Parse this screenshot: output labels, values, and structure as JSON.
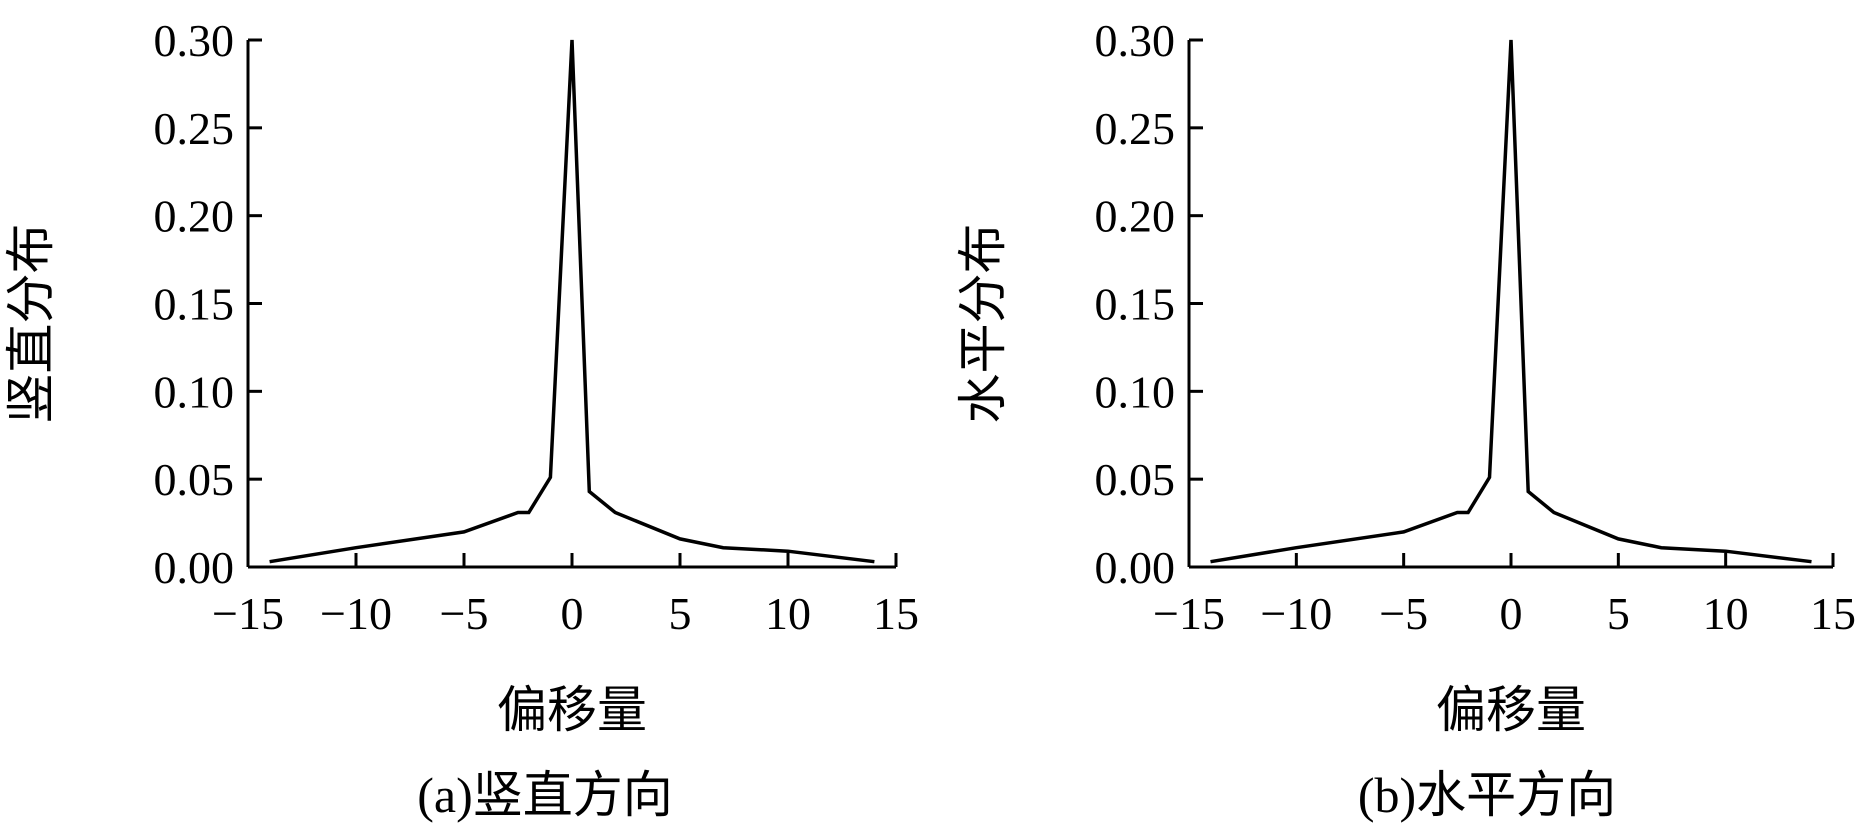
{
  "chart_data": [
    {
      "type": "line",
      "caption": "(a)竖直方向",
      "xlabel": "偏移量",
      "ylabel": "竖直分布",
      "xlim": [
        -15,
        15
      ],
      "ylim": [
        0,
        0.3
      ],
      "xticks": [
        "−15",
        "−10",
        "−5",
        "0",
        "5",
        "10",
        "15"
      ],
      "yticks": [
        "0.00",
        "0.05",
        "0.10",
        "0.15",
        "0.20",
        "0.25",
        "0.30"
      ],
      "grid": false,
      "series": [
        {
          "x": [
            -14,
            -10,
            -5,
            -2.5,
            -2,
            -1,
            0,
            0.8,
            2,
            5,
            7,
            10,
            14
          ],
          "y": [
            0.003,
            0.011,
            0.02,
            0.031,
            0.031,
            0.051,
            0.3,
            0.043,
            0.031,
            0.016,
            0.011,
            0.009,
            0.003
          ]
        }
      ]
    },
    {
      "type": "line",
      "caption": "(b)水平方向",
      "xlabel": "偏移量",
      "ylabel": "水平分布",
      "xlim": [
        -15,
        15
      ],
      "ylim": [
        0,
        0.3
      ],
      "xticks": [
        "−15",
        "−10",
        "−5",
        "0",
        "5",
        "10",
        "15"
      ],
      "yticks": [
        "0.00",
        "0.05",
        "0.10",
        "0.15",
        "0.20",
        "0.25",
        "0.30"
      ],
      "grid": false,
      "series": [
        {
          "x": [
            -14,
            -10,
            -5,
            -2.5,
            -2,
            -1,
            0,
            0.8,
            2,
            5,
            7,
            10,
            14
          ],
          "y": [
            0.003,
            0.011,
            0.02,
            0.031,
            0.031,
            0.051,
            0.3,
            0.043,
            0.031,
            0.016,
            0.011,
            0.009,
            0.003
          ]
        }
      ]
    }
  ]
}
